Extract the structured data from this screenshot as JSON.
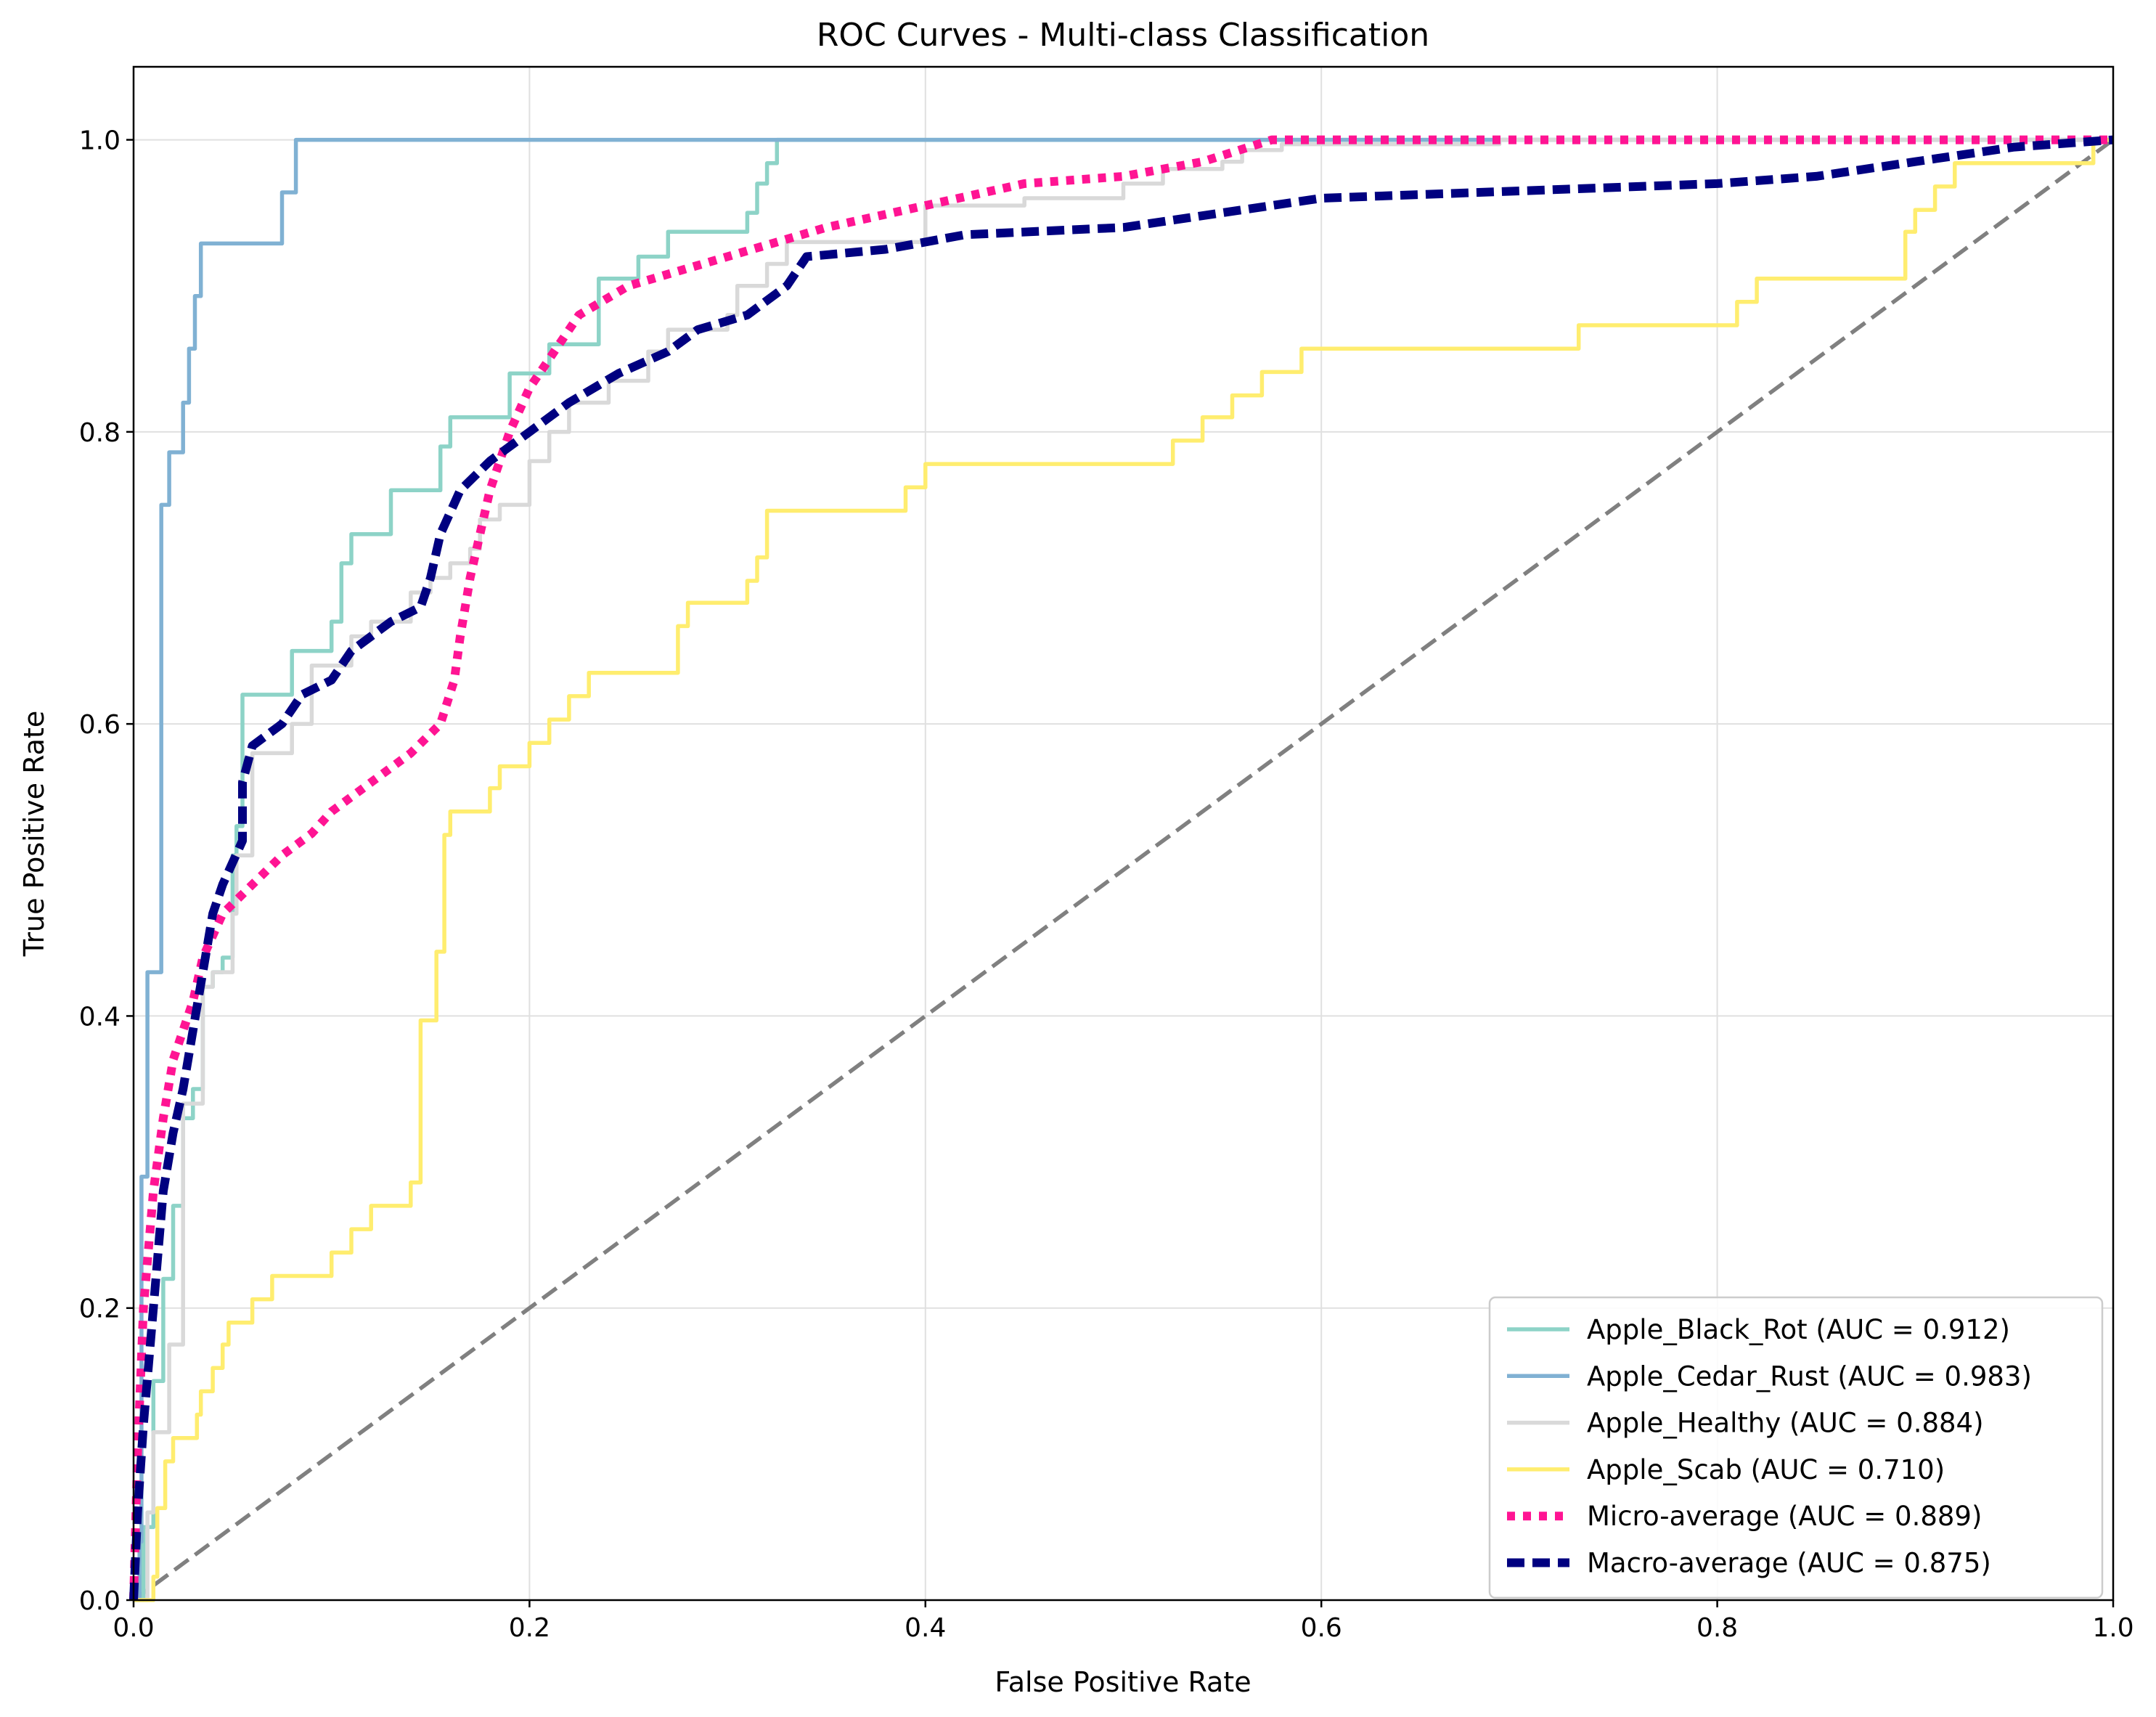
{
  "chart_data": {
    "type": "line",
    "title": "ROC Curves - Multi-class Classification",
    "xlabel": "False Positive Rate",
    "ylabel": "True Positive Rate",
    "xlim": [
      0.0,
      1.0
    ],
    "ylim": [
      0.0,
      1.05
    ],
    "xticks": [
      "0.0",
      "0.2",
      "0.4",
      "0.6",
      "0.8",
      "1.0"
    ],
    "yticks": [
      "0.0",
      "0.2",
      "0.4",
      "0.6",
      "0.8",
      "1.0"
    ],
    "grid": true,
    "legend_position": "lower-right",
    "series": [
      {
        "name": "Apple_Black_Rot (AUC = 0.912)",
        "color": "#8dd3c7",
        "style": "solid",
        "width": "thin",
        "step": true,
        "points": [
          [
            0,
            0
          ],
          [
            0.005,
            0.05
          ],
          [
            0.01,
            0.15
          ],
          [
            0.015,
            0.22
          ],
          [
            0.02,
            0.27
          ],
          [
            0.025,
            0.33
          ],
          [
            0.03,
            0.35
          ],
          [
            0.035,
            0.42
          ],
          [
            0.04,
            0.43
          ],
          [
            0.045,
            0.44
          ],
          [
            0.05,
            0.51
          ],
          [
            0.052,
            0.53
          ],
          [
            0.055,
            0.56
          ],
          [
            0.055,
            0.62
          ],
          [
            0.08,
            0.62
          ],
          [
            0.08,
            0.65
          ],
          [
            0.1,
            0.65
          ],
          [
            0.1,
            0.67
          ],
          [
            0.105,
            0.71
          ],
          [
            0.11,
            0.73
          ],
          [
            0.13,
            0.73
          ],
          [
            0.13,
            0.76
          ],
          [
            0.15,
            0.76
          ],
          [
            0.155,
            0.79
          ],
          [
            0.16,
            0.81
          ],
          [
            0.18,
            0.81
          ],
          [
            0.19,
            0.84
          ],
          [
            0.205,
            0.84
          ],
          [
            0.21,
            0.86
          ],
          [
            0.23,
            0.86
          ],
          [
            0.235,
            0.905
          ],
          [
            0.25,
            0.905
          ],
          [
            0.255,
            0.92
          ],
          [
            0.27,
            0.92
          ],
          [
            0.27,
            0.937
          ],
          [
            0.3,
            0.937
          ],
          [
            0.31,
            0.95
          ],
          [
            0.315,
            0.95
          ],
          [
            0.315,
            0.97
          ],
          [
            0.32,
            0.984
          ],
          [
            0.325,
            0.984
          ],
          [
            0.325,
            1.0
          ],
          [
            1.0,
            1.0
          ]
        ]
      },
      {
        "name": "Apple_Cedar_Rust (AUC = 0.983)",
        "color": "#80b1d3",
        "style": "solid",
        "width": "thin",
        "step": true,
        "points": [
          [
            0,
            0
          ],
          [
            0.003,
            0.04
          ],
          [
            0.004,
            0.29
          ],
          [
            0.007,
            0.29
          ],
          [
            0.007,
            0.43
          ],
          [
            0.014,
            0.43
          ],
          [
            0.014,
            0.75
          ],
          [
            0.018,
            0.75
          ],
          [
            0.018,
            0.786
          ],
          [
            0.025,
            0.786
          ],
          [
            0.025,
            0.82
          ],
          [
            0.028,
            0.82
          ],
          [
            0.028,
            0.857
          ],
          [
            0.031,
            0.857
          ],
          [
            0.031,
            0.893
          ],
          [
            0.034,
            0.893
          ],
          [
            0.034,
            0.929
          ],
          [
            0.075,
            0.929
          ],
          [
            0.075,
            0.964
          ],
          [
            0.082,
            0.964
          ],
          [
            0.082,
            1.0
          ],
          [
            1.0,
            1.0
          ]
        ]
      },
      {
        "name": "Apple_Healthy (AUC = 0.884)",
        "color": "#d9d9d9",
        "style": "solid",
        "width": "thin",
        "step": true,
        "points": [
          [
            0,
            0
          ],
          [
            0.007,
            0.06
          ],
          [
            0.01,
            0.115
          ],
          [
            0.018,
            0.115
          ],
          [
            0.018,
            0.175
          ],
          [
            0.025,
            0.175
          ],
          [
            0.025,
            0.34
          ],
          [
            0.035,
            0.34
          ],
          [
            0.035,
            0.42
          ],
          [
            0.04,
            0.43
          ],
          [
            0.045,
            0.43
          ],
          [
            0.05,
            0.47
          ],
          [
            0.052,
            0.51
          ],
          [
            0.06,
            0.51
          ],
          [
            0.06,
            0.58
          ],
          [
            0.08,
            0.58
          ],
          [
            0.08,
            0.6
          ],
          [
            0.09,
            0.6
          ],
          [
            0.09,
            0.64
          ],
          [
            0.1,
            0.64
          ],
          [
            0.11,
            0.66
          ],
          [
            0.12,
            0.67
          ],
          [
            0.14,
            0.69
          ],
          [
            0.15,
            0.7
          ],
          [
            0.16,
            0.71
          ],
          [
            0.17,
            0.72
          ],
          [
            0.175,
            0.74
          ],
          [
            0.185,
            0.75
          ],
          [
            0.2,
            0.75
          ],
          [
            0.2,
            0.78
          ],
          [
            0.21,
            0.78
          ],
          [
            0.21,
            0.8
          ],
          [
            0.22,
            0.82
          ],
          [
            0.24,
            0.82
          ],
          [
            0.24,
            0.835
          ],
          [
            0.26,
            0.835
          ],
          [
            0.26,
            0.855
          ],
          [
            0.27,
            0.855
          ],
          [
            0.27,
            0.87
          ],
          [
            0.29,
            0.87
          ],
          [
            0.3,
            0.88
          ],
          [
            0.305,
            0.88
          ],
          [
            0.305,
            0.9
          ],
          [
            0.31,
            0.9
          ],
          [
            0.32,
            0.915
          ],
          [
            0.33,
            0.93
          ],
          [
            0.38,
            0.93
          ],
          [
            0.4,
            0.955
          ],
          [
            0.45,
            0.96
          ],
          [
            0.5,
            0.97
          ],
          [
            0.52,
            0.98
          ],
          [
            0.55,
            0.985
          ],
          [
            0.56,
            0.993
          ],
          [
            0.58,
            0.997
          ],
          [
            0.69,
            0.997
          ],
          [
            0.69,
            1.0
          ],
          [
            1.0,
            1.0
          ]
        ]
      },
      {
        "name": "Apple_Scab (AUC = 0.710)",
        "color": "#ffed6f",
        "style": "solid",
        "width": "thin",
        "step": true,
        "points": [
          [
            0,
            0
          ],
          [
            0.01,
            0.016
          ],
          [
            0.012,
            0.063
          ],
          [
            0.016,
            0.095
          ],
          [
            0.02,
            0.095
          ],
          [
            0.02,
            0.111
          ],
          [
            0.032,
            0.111
          ],
          [
            0.032,
            0.127
          ],
          [
            0.034,
            0.127
          ],
          [
            0.034,
            0.143
          ],
          [
            0.04,
            0.143
          ],
          [
            0.04,
            0.159
          ],
          [
            0.045,
            0.159
          ],
          [
            0.045,
            0.175
          ],
          [
            0.048,
            0.175
          ],
          [
            0.048,
            0.19
          ],
          [
            0.06,
            0.19
          ],
          [
            0.06,
            0.206
          ],
          [
            0.07,
            0.206
          ],
          [
            0.07,
            0.222
          ],
          [
            0.1,
            0.222
          ],
          [
            0.1,
            0.238
          ],
          [
            0.11,
            0.238
          ],
          [
            0.11,
            0.254
          ],
          [
            0.12,
            0.254
          ],
          [
            0.12,
            0.27
          ],
          [
            0.14,
            0.27
          ],
          [
            0.14,
            0.286
          ],
          [
            0.145,
            0.286
          ],
          [
            0.145,
            0.397
          ],
          [
            0.153,
            0.397
          ],
          [
            0.153,
            0.444
          ],
          [
            0.157,
            0.444
          ],
          [
            0.157,
            0.524
          ],
          [
            0.16,
            0.524
          ],
          [
            0.16,
            0.54
          ],
          [
            0.18,
            0.54
          ],
          [
            0.18,
            0.556
          ],
          [
            0.185,
            0.556
          ],
          [
            0.185,
            0.571
          ],
          [
            0.2,
            0.571
          ],
          [
            0.2,
            0.587
          ],
          [
            0.21,
            0.587
          ],
          [
            0.21,
            0.603
          ],
          [
            0.22,
            0.603
          ],
          [
            0.22,
            0.619
          ],
          [
            0.23,
            0.619
          ],
          [
            0.23,
            0.635
          ],
          [
            0.275,
            0.635
          ],
          [
            0.275,
            0.667
          ],
          [
            0.28,
            0.667
          ],
          [
            0.28,
            0.683
          ],
          [
            0.31,
            0.683
          ],
          [
            0.31,
            0.698
          ],
          [
            0.315,
            0.698
          ],
          [
            0.315,
            0.714
          ],
          [
            0.32,
            0.714
          ],
          [
            0.32,
            0.746
          ],
          [
            0.39,
            0.746
          ],
          [
            0.39,
            0.762
          ],
          [
            0.4,
            0.762
          ],
          [
            0.4,
            0.778
          ],
          [
            0.525,
            0.778
          ],
          [
            0.525,
            0.794
          ],
          [
            0.54,
            0.794
          ],
          [
            0.54,
            0.81
          ],
          [
            0.555,
            0.81
          ],
          [
            0.555,
            0.825
          ],
          [
            0.57,
            0.825
          ],
          [
            0.57,
            0.841
          ],
          [
            0.59,
            0.841
          ],
          [
            0.59,
            0.857
          ],
          [
            0.73,
            0.857
          ],
          [
            0.73,
            0.873
          ],
          [
            0.81,
            0.873
          ],
          [
            0.81,
            0.889
          ],
          [
            0.82,
            0.889
          ],
          [
            0.82,
            0.905
          ],
          [
            0.895,
            0.905
          ],
          [
            0.895,
            0.937
          ],
          [
            0.9,
            0.937
          ],
          [
            0.9,
            0.952
          ],
          [
            0.91,
            0.952
          ],
          [
            0.91,
            0.968
          ],
          [
            0.92,
            0.968
          ],
          [
            0.92,
            0.984
          ],
          [
            0.99,
            0.984
          ],
          [
            0.99,
            1.0
          ],
          [
            1.0,
            1.0
          ]
        ]
      },
      {
        "name": "Micro-average (AUC = 0.889)",
        "color": "#ff1493",
        "style": "dotted",
        "width": "thick",
        "step": false,
        "points": [
          [
            0,
            0
          ],
          [
            0.002,
            0.1
          ],
          [
            0.005,
            0.2
          ],
          [
            0.01,
            0.28
          ],
          [
            0.015,
            0.33
          ],
          [
            0.02,
            0.37
          ],
          [
            0.03,
            0.41
          ],
          [
            0.035,
            0.44
          ],
          [
            0.045,
            0.47
          ],
          [
            0.06,
            0.49
          ],
          [
            0.075,
            0.51
          ],
          [
            0.09,
            0.525
          ],
          [
            0.1,
            0.54
          ],
          [
            0.12,
            0.56
          ],
          [
            0.14,
            0.58
          ],
          [
            0.155,
            0.6
          ],
          [
            0.162,
            0.63
          ],
          [
            0.165,
            0.66
          ],
          [
            0.17,
            0.7
          ],
          [
            0.175,
            0.73
          ],
          [
            0.18,
            0.76
          ],
          [
            0.19,
            0.8
          ],
          [
            0.2,
            0.83
          ],
          [
            0.21,
            0.85
          ],
          [
            0.225,
            0.88
          ],
          [
            0.25,
            0.9
          ],
          [
            0.3,
            0.92
          ],
          [
            0.35,
            0.94
          ],
          [
            0.4,
            0.955
          ],
          [
            0.45,
            0.97
          ],
          [
            0.5,
            0.975
          ],
          [
            0.54,
            0.985
          ],
          [
            0.575,
            1.0
          ],
          [
            1.0,
            1.0
          ]
        ]
      },
      {
        "name": "Macro-average (AUC = 0.875)",
        "color": "#000080",
        "style": "dashed",
        "width": "thick",
        "step": false,
        "points": [
          [
            0,
            0
          ],
          [
            0.002,
            0.06
          ],
          [
            0.005,
            0.12
          ],
          [
            0.01,
            0.2
          ],
          [
            0.015,
            0.28
          ],
          [
            0.02,
            0.32
          ],
          [
            0.025,
            0.35
          ],
          [
            0.03,
            0.39
          ],
          [
            0.035,
            0.43
          ],
          [
            0.04,
            0.47
          ],
          [
            0.045,
            0.49
          ],
          [
            0.055,
            0.52
          ],
          [
            0.055,
            0.56
          ],
          [
            0.06,
            0.585
          ],
          [
            0.075,
            0.6
          ],
          [
            0.085,
            0.62
          ],
          [
            0.1,
            0.63
          ],
          [
            0.11,
            0.65
          ],
          [
            0.13,
            0.67
          ],
          [
            0.145,
            0.68
          ],
          [
            0.15,
            0.7
          ],
          [
            0.155,
            0.73
          ],
          [
            0.165,
            0.76
          ],
          [
            0.18,
            0.78
          ],
          [
            0.2,
            0.8
          ],
          [
            0.22,
            0.82
          ],
          [
            0.245,
            0.84
          ],
          [
            0.27,
            0.855
          ],
          [
            0.285,
            0.87
          ],
          [
            0.31,
            0.88
          ],
          [
            0.33,
            0.9
          ],
          [
            0.34,
            0.92
          ],
          [
            0.38,
            0.925
          ],
          [
            0.42,
            0.935
          ],
          [
            0.5,
            0.94
          ],
          [
            0.55,
            0.95
          ],
          [
            0.6,
            0.96
          ],
          [
            0.7,
            0.965
          ],
          [
            0.8,
            0.97
          ],
          [
            0.85,
            0.975
          ],
          [
            0.9,
            0.985
          ],
          [
            0.95,
            0.995
          ],
          [
            1.0,
            1.0
          ]
        ]
      },
      {
        "name": "",
        "color": "#808080",
        "style": "dashed",
        "width": "medium",
        "step": false,
        "points": [
          [
            0,
            0
          ],
          [
            1,
            1
          ]
        ]
      }
    ]
  }
}
